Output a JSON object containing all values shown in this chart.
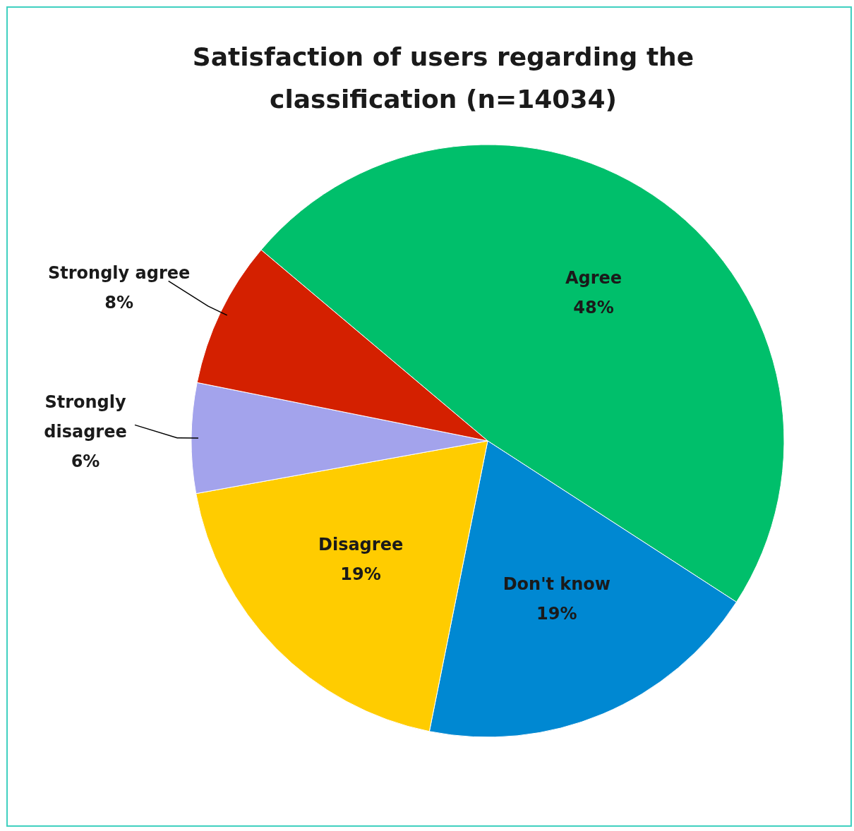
{
  "chart_data": {
    "type": "pie",
    "title": "Satisfaction of users regarding the classification (n=14034)",
    "categories": [
      "Agree",
      "Don't know",
      "Disagree",
      "Strongly disagree",
      "Strongly agree"
    ],
    "values": [
      48,
      19,
      19,
      6,
      8
    ],
    "colors": [
      "#00bf6b",
      "#0088d2",
      "#ffcc00",
      "#a3a3ec",
      "#d42000"
    ],
    "value_labels": [
      "48%",
      "19%",
      "19%",
      "6%",
      "8%"
    ]
  }
}
